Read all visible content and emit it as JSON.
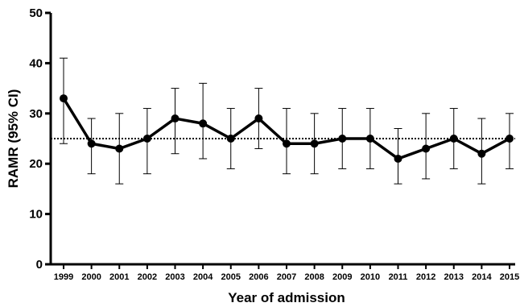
{
  "chart_data": {
    "type": "line",
    "title": "",
    "xlabel": "Year of admission",
    "ylabel": "RAMR (95% CI)",
    "categories": [
      "1999",
      "2000",
      "2001",
      "2002",
      "2003",
      "2004",
      "2005",
      "2006",
      "2007",
      "2008",
      "2009",
      "2010",
      "2011",
      "2012",
      "2013",
      "2014",
      "2015"
    ],
    "series": [
      {
        "values": [
          33,
          24,
          23,
          25,
          29,
          28,
          25,
          29,
          24,
          24,
          25,
          25,
          21,
          23,
          25,
          22,
          25
        ],
        "ci_lower": [
          24,
          18,
          16,
          18,
          22,
          21,
          19,
          23,
          18,
          18,
          19,
          19,
          16,
          17,
          19,
          16,
          19
        ],
        "ci_upper": [
          41,
          29,
          30,
          31,
          35,
          36,
          31,
          35,
          31,
          30,
          31,
          31,
          27,
          30,
          31,
          29,
          30
        ],
        "color": "#000000"
      }
    ],
    "reference_line": {
      "y": 25,
      "style": "dotted"
    },
    "ylim": [
      0,
      50
    ],
    "yticks": [
      0,
      10,
      20,
      30,
      40,
      50
    ],
    "grid": false,
    "legend": "none"
  }
}
